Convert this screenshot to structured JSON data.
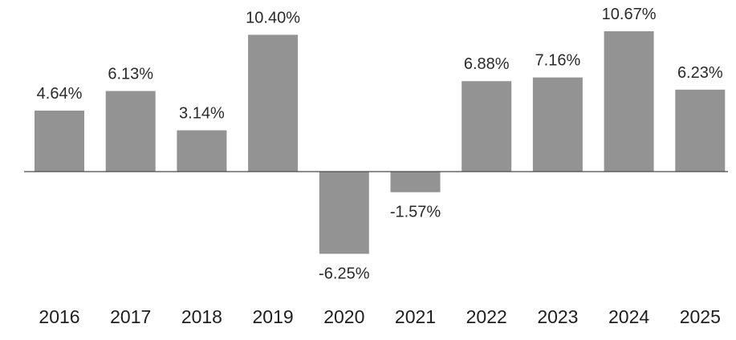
{
  "chart_data": {
    "type": "bar",
    "categories": [
      "2016",
      "2017",
      "2018",
      "2019",
      "2020",
      "2021",
      "2022",
      "2023",
      "2024",
      "2025"
    ],
    "values": [
      4.64,
      6.13,
      3.14,
      10.4,
      -6.25,
      -1.57,
      6.88,
      7.16,
      10.67,
      6.23
    ],
    "data_labels": [
      "4.64%",
      "6.13%",
      "3.14%",
      "10.40%",
      "-6.25%",
      "-1.57%",
      "6.88%",
      "7.16%",
      "10.67%",
      "6.23%"
    ],
    "bar_color": "#939393",
    "grid": false,
    "legend": "none"
  }
}
